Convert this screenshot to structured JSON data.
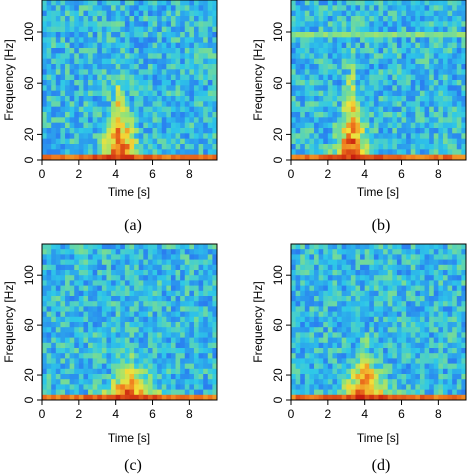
{
  "chart_data": [
    {
      "type": "heatmap",
      "caption": "(a)",
      "xlabel": "Time [s]",
      "ylabel": "Frequency [Hz]",
      "xlim": [
        0,
        9.5
      ],
      "ylim": [
        0,
        125
      ],
      "xticks": [
        0,
        2,
        4,
        6,
        8
      ],
      "yticks": [
        0,
        20,
        60,
        100
      ],
      "colormap": [
        "#1f3fd6",
        "#2a7ff0",
        "#2ec8e8",
        "#8fe27a",
        "#f2e23a",
        "#f07a1e",
        "#c81e0f"
      ],
      "event": {
        "center_time_s": 4.2,
        "peak_frequency_hz": 75,
        "low_freq_spread_s": 1.0
      },
      "horizontal_line_hz": null
    },
    {
      "type": "heatmap",
      "caption": "(b)",
      "xlabel": "Time [s]",
      "ylabel": "Frequency [Hz]",
      "xlim": [
        0,
        9.5
      ],
      "ylim": [
        0,
        125
      ],
      "xticks": [
        0,
        2,
        4,
        6,
        8
      ],
      "yticks": [
        0,
        20,
        60,
        100
      ],
      "colormap": [
        "#1f3fd6",
        "#2a7ff0",
        "#2ec8e8",
        "#8fe27a",
        "#f2e23a",
        "#f07a1e",
        "#c81e0f"
      ],
      "event": {
        "center_time_s": 3.3,
        "peak_frequency_hz": 85,
        "low_freq_spread_s": 0.9
      },
      "horizontal_line_hz": 97
    },
    {
      "type": "heatmap",
      "caption": "(c)",
      "xlabel": "Time [s]",
      "ylabel": "Frequency [Hz]",
      "xlim": [
        0,
        9.5
      ],
      "ylim": [
        0,
        125
      ],
      "xticks": [
        0,
        2,
        4,
        6,
        8
      ],
      "yticks": [
        0,
        20,
        60,
        100
      ],
      "colormap": [
        "#1f3fd6",
        "#2a7ff0",
        "#2ec8e8",
        "#8fe27a",
        "#f2e23a",
        "#f07a1e",
        "#c81e0f"
      ],
      "event": {
        "center_time_s": 4.8,
        "peak_frequency_hz": 40,
        "low_freq_spread_s": 1.6
      },
      "horizontal_line_hz": null
    },
    {
      "type": "heatmap",
      "caption": "(d)",
      "xlabel": "Time [s]",
      "ylabel": "Frequency [Hz]",
      "xlim": [
        0,
        9.5
      ],
      "ylim": [
        0,
        125
      ],
      "xticks": [
        0,
        2,
        4,
        6,
        8
      ],
      "yticks": [
        0,
        20,
        60,
        100
      ],
      "colormap": [
        "#1f3fd6",
        "#2a7ff0",
        "#2ec8e8",
        "#8fe27a",
        "#f2e23a",
        "#f07a1e",
        "#c81e0f"
      ],
      "event": {
        "center_time_s": 4.0,
        "peak_frequency_hz": 50,
        "low_freq_spread_s": 1.3
      },
      "horizontal_line_hz": null
    }
  ]
}
